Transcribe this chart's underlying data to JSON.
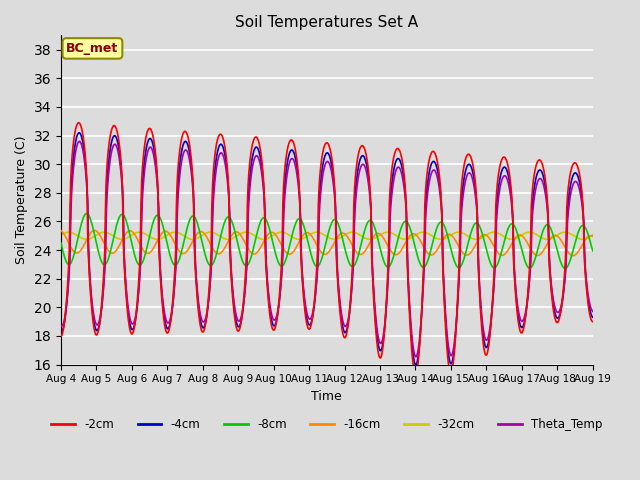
{
  "title": "Soil Temperatures Set A",
  "xlabel": "Time",
  "ylabel": "Soil Temperature (C)",
  "ylim": [
    16,
    39
  ],
  "series": {
    "-2cm": {
      "color": "#FF0000",
      "lw": 1.2
    },
    "-4cm": {
      "color": "#0000CC",
      "lw": 1.2
    },
    "-8cm": {
      "color": "#00CC00",
      "lw": 1.2
    },
    "-16cm": {
      "color": "#FF8800",
      "lw": 1.2
    },
    "-32cm": {
      "color": "#CCCC00",
      "lw": 1.2
    },
    "Theta_Temp": {
      "color": "#AA00AA",
      "lw": 1.2
    }
  },
  "legend_colors": {
    "-2cm": "#FF0000",
    "-4cm": "#0000CC",
    "-8cm": "#00CC00",
    "-16cm": "#FF8800",
    "-32cm": "#CCCC00",
    "Theta_Temp": "#AA00AA"
  },
  "xtick_labels": [
    "Aug 4",
    "Aug 5",
    "Aug 6",
    "Aug 7",
    "Aug 8",
    "Aug 9",
    "Aug 10",
    "Aug 11",
    "Aug 12",
    "Aug 13",
    "Aug 14",
    "Aug 15",
    "Aug 16",
    "Aug 17",
    "Aug 18",
    "Aug 19"
  ],
  "yticks": [
    16,
    18,
    20,
    22,
    24,
    26,
    28,
    30,
    32,
    34,
    36,
    38
  ],
  "bg_color": "#DCDCDC",
  "annotation_text": "BC_met"
}
